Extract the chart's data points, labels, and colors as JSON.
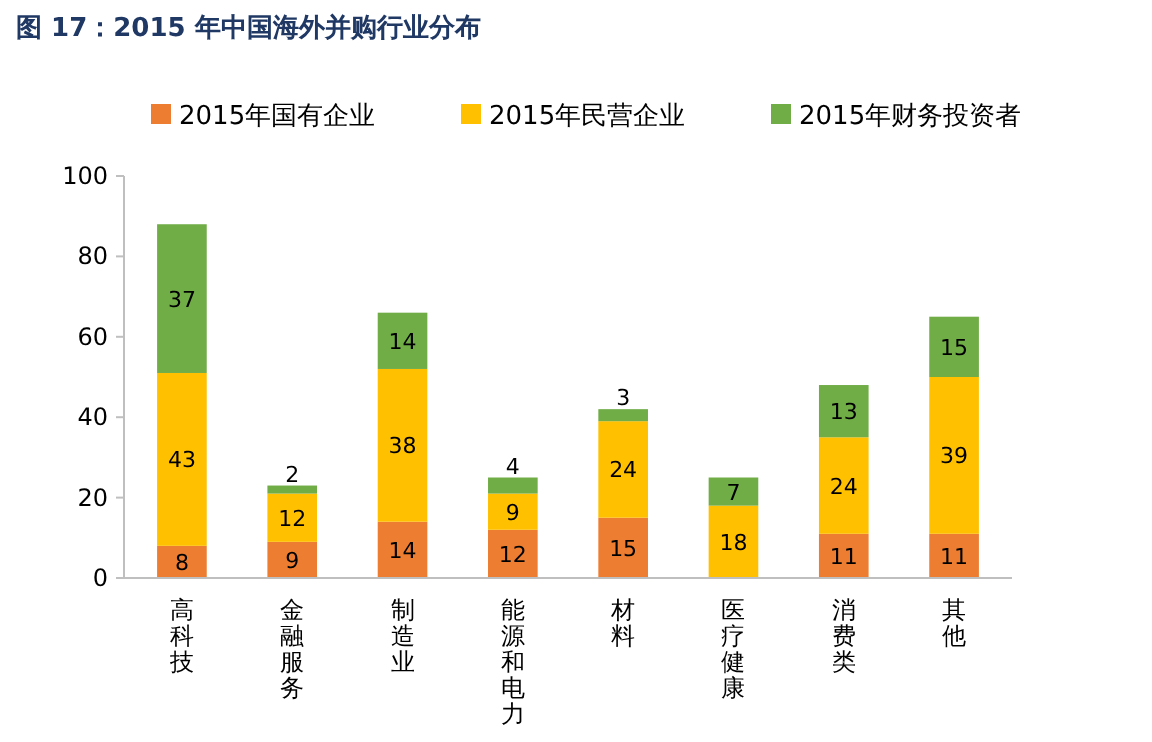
{
  "chart_data": {
    "type": "bar",
    "title": "图 17：2015 年中国海外并购行业分布",
    "categories": [
      "高科技",
      "金融服务",
      "制造业",
      "能源和电力",
      "材料",
      "医疗健康",
      "消费类",
      "其他"
    ],
    "series": [
      {
        "name": "2015年国有企业",
        "color": "#ed7d31",
        "values": [
          8,
          9,
          14,
          12,
          15,
          null,
          11,
          11
        ]
      },
      {
        "name": "2015年民营企业",
        "color": "#ffc000",
        "values": [
          43,
          12,
          38,
          9,
          24,
          18,
          24,
          39
        ]
      },
      {
        "name": "2015年财务投资者",
        "color": "#70ad47",
        "values": [
          37,
          2,
          14,
          4,
          3,
          7,
          13,
          15
        ]
      }
    ],
    "stacked": true,
    "data_labels": true,
    "ylim": [
      0,
      100
    ],
    "yticks": [
      0,
      20,
      40,
      60,
      80,
      100
    ],
    "grid": false,
    "legend": "top"
  }
}
